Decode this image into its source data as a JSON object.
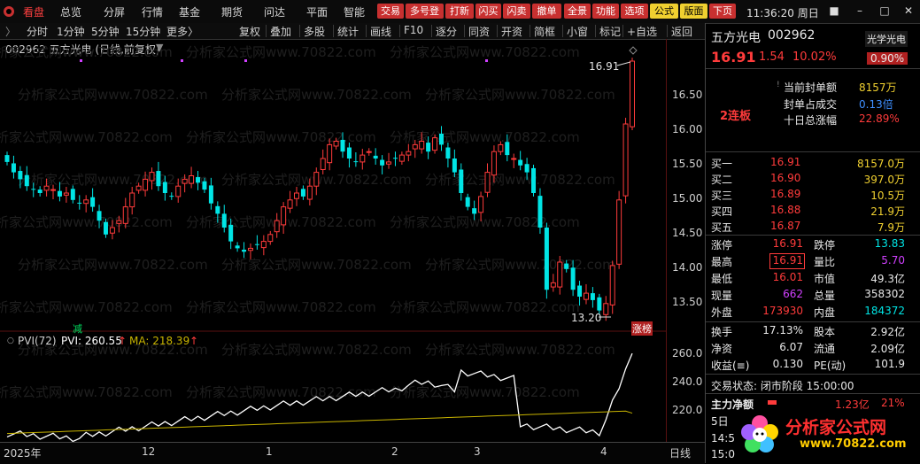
{
  "menu": {
    "items": [
      "看盘",
      "总览",
      "分屏",
      "行情",
      "基金",
      "期货",
      "问达",
      "平面",
      "智能"
    ],
    "active": "看盘",
    "tags": [
      {
        "label": "交易",
        "bg": "#c83030",
        "fg": "#ffffff"
      },
      {
        "label": "多号登",
        "bg": "#c83030",
        "fg": "#ffffff"
      },
      {
        "label": "打新",
        "bg": "#c83030",
        "fg": "#ffffff"
      },
      {
        "label": "闪买",
        "bg": "#c83030",
        "fg": "#ffffff"
      },
      {
        "label": "闪卖",
        "bg": "#c83030",
        "fg": "#ffffff"
      },
      {
        "label": "撤单",
        "bg": "#c83030",
        "fg": "#ffffff"
      },
      {
        "label": "全景",
        "bg": "#c83030",
        "fg": "#ffffff"
      },
      {
        "label": "功能",
        "bg": "#c83030",
        "fg": "#ffffff"
      },
      {
        "label": "选项",
        "bg": "#c83030",
        "fg": "#ffffff"
      },
      {
        "label": "公式",
        "bg": "#f0d030",
        "fg": "#000000"
      },
      {
        "label": "版面",
        "bg": "#f0d030",
        "fg": "#000000"
      },
      {
        "label": "下页",
        "bg": "#c83030",
        "fg": "#ffffff"
      }
    ],
    "clock": "11:36:20 周日"
  },
  "toolbar": {
    "left": [
      "分时",
      "1分钟",
      "5分钟",
      "15分钟",
      "更多〉"
    ],
    "right": [
      "复权",
      "叠加",
      "多股",
      "统计",
      "画线",
      "F10",
      "逐分",
      "同资",
      "开资",
      "简框",
      "小窗",
      "标记",
      "+自选",
      "返回"
    ]
  },
  "chart": {
    "title": "002962 五方光电 (日线,前复权)",
    "price_ticks": [
      "16.50",
      "16.00",
      "15.50",
      "15.00",
      "14.50",
      "14.00",
      "13.50"
    ],
    "high_label": "16.91",
    "low_label": "13.20",
    "tag_jian": "减",
    "tag_zhangbang": "涨榜",
    "indicator_title": "PVI(72)",
    "pvi_label": "PVI: 260.55",
    "ma_label": "MA: 218.39",
    "pvi_ticks": [
      "260.0",
      "240.0",
      "220.0"
    ],
    "date_labels": [
      "2025年",
      "12",
      "1",
      "2",
      "3",
      "4"
    ],
    "period": "日线",
    "watermark": "分析家公式网www.70822.com"
  },
  "stock": {
    "name": "五方光电",
    "code": "002962",
    "price": "16.91",
    "change": "1.54",
    "pct": "10.02%",
    "sector": "光学光电",
    "sector_pct": "0.90%",
    "lianban": "2连板",
    "seal_label": "当前封单额",
    "seal_val": "8157万",
    "seal_ratio_label": "封单占成交",
    "seal_ratio_val": "0.13倍",
    "ten_day_label": "十日总涨幅",
    "ten_day_val": "22.89%"
  },
  "bids": [
    {
      "label": "买一",
      "price": "16.91",
      "vol": "8157.0万"
    },
    {
      "label": "买二",
      "price": "16.90",
      "vol": "397.0万"
    },
    {
      "label": "买三",
      "price": "16.89",
      "vol": "10.5万"
    },
    {
      "label": "买四",
      "price": "16.88",
      "vol": "21.9万"
    },
    {
      "label": "买五",
      "price": "16.87",
      "vol": "7.9万"
    }
  ],
  "quote": [
    {
      "l1": "涨停",
      "v1": "16.91",
      "c1": "red",
      "l2": "跌停",
      "v2": "13.83",
      "c2": "green"
    },
    {
      "l1": "最高",
      "v1": "16.91",
      "c1": "red",
      "l2": "量比",
      "v2": "5.70",
      "c2": "purple"
    },
    {
      "l1": "最低",
      "v1": "16.01",
      "c1": "red",
      "l2": "市值",
      "v2": "49.3亿",
      "c2": "white"
    },
    {
      "l1": "现量",
      "v1": "662",
      "c1": "purple",
      "l2": "总量",
      "v2": "358302",
      "c2": "white"
    },
    {
      "l1": "外盘",
      "v1": "173930",
      "c1": "red",
      "l2": "内盘",
      "v2": "184372",
      "c2": "green"
    }
  ],
  "finance": [
    {
      "l1": "换手",
      "v1": "17.13%",
      "l2": "股本",
      "v2": "2.92亿"
    },
    {
      "l1": "净资",
      "v1": "6.07",
      "l2": "流通",
      "v2": "2.09亿"
    },
    {
      "l1": "收益(≡)",
      "v1": "0.130",
      "l2": "PE(动)",
      "v2": "101.9"
    }
  ],
  "status": {
    "state": "交易状态: 闭市阶段 15:00:00",
    "net_label": "主力净额",
    "net_val": "1.23亿",
    "net_pct": "21%",
    "row5": "5日",
    "time14": "14:5",
    "time15": "15:0"
  },
  "brand": {
    "name": "分析家公式网",
    "url": "www.70822.com"
  },
  "colors": {
    "up": "#ff3b3b",
    "down": "#00e5e5",
    "pvi": "#ffffff",
    "ma": "#c8b400"
  }
}
